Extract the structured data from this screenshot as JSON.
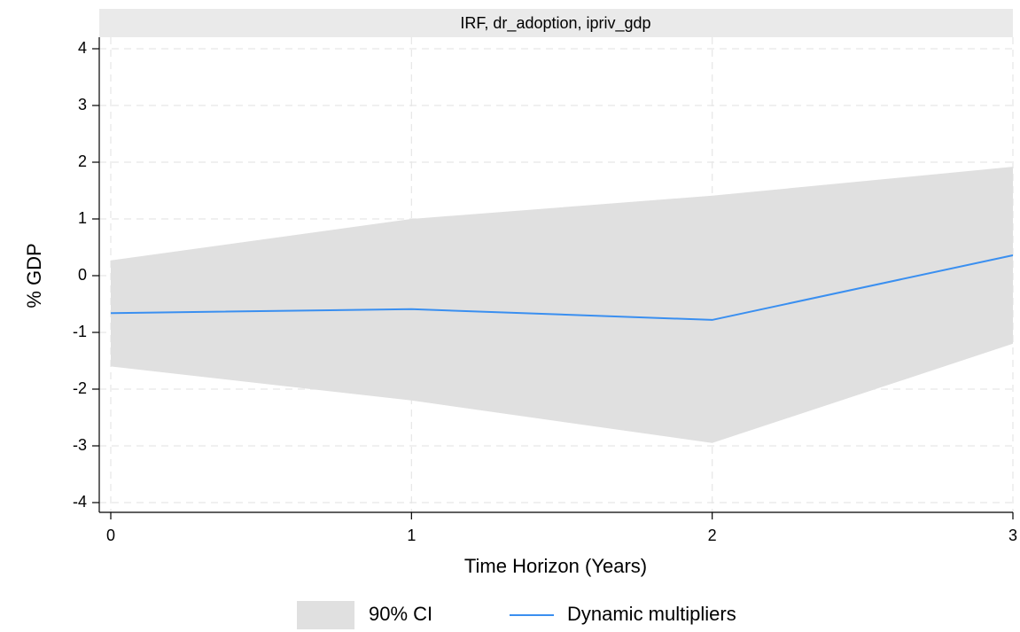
{
  "chart_data": {
    "type": "line",
    "title": "IRF, dr_adoption, ipriv_gdp",
    "x_label": "Time Horizon (Years)",
    "y_label": "% GDP",
    "x": [
      0,
      1,
      2,
      3
    ],
    "xlim": [
      0,
      3
    ],
    "xticks": [
      0,
      1,
      2,
      3
    ],
    "ylim": [
      -4,
      4
    ],
    "yticks": [
      -4,
      -3,
      -2,
      -1,
      0,
      1,
      2,
      3,
      4
    ],
    "grid": true,
    "band": {
      "name": "90% CI",
      "color": "#e0e0e0",
      "lower": [
        -1.6,
        -2.2,
        -2.95,
        -1.2
      ],
      "upper": [
        0.27,
        1.0,
        1.41,
        1.92
      ]
    },
    "series": [
      {
        "name": "Dynamic multipliers",
        "color": "#3a8ff0",
        "values": [
          -0.66,
          -0.59,
          -0.78,
          0.36
        ]
      }
    ]
  }
}
